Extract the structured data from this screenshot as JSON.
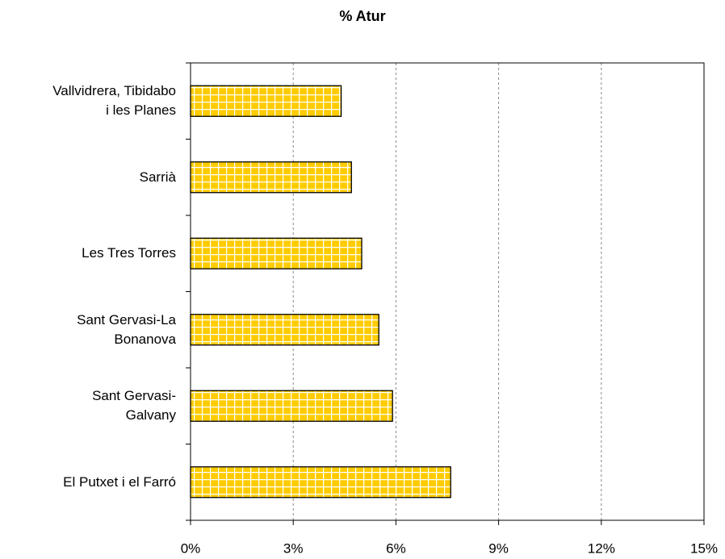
{
  "chart_data": {
    "type": "hbar",
    "title": "% Atur",
    "categories": [
      "Vallvidrera, Tibidabo\ni les Planes",
      "Sarrià",
      "Les Tres Torres",
      "Sant Gervasi-La\nBonanova",
      "Sant Gervasi-\nGalvany",
      "El Putxet i el Farró"
    ],
    "values": [
      4.4,
      4.7,
      5.0,
      5.5,
      5.9,
      7.6
    ],
    "color": "#ffcc00",
    "xlim": [
      0,
      15
    ],
    "xticks": [
      {
        "value": 0,
        "label": "0%"
      },
      {
        "value": 3,
        "label": "3%"
      },
      {
        "value": 6,
        "label": "6%"
      },
      {
        "value": 9,
        "label": "9%"
      },
      {
        "value": 12,
        "label": "12%"
      },
      {
        "value": 15,
        "label": "15%"
      }
    ],
    "grid": true
  }
}
